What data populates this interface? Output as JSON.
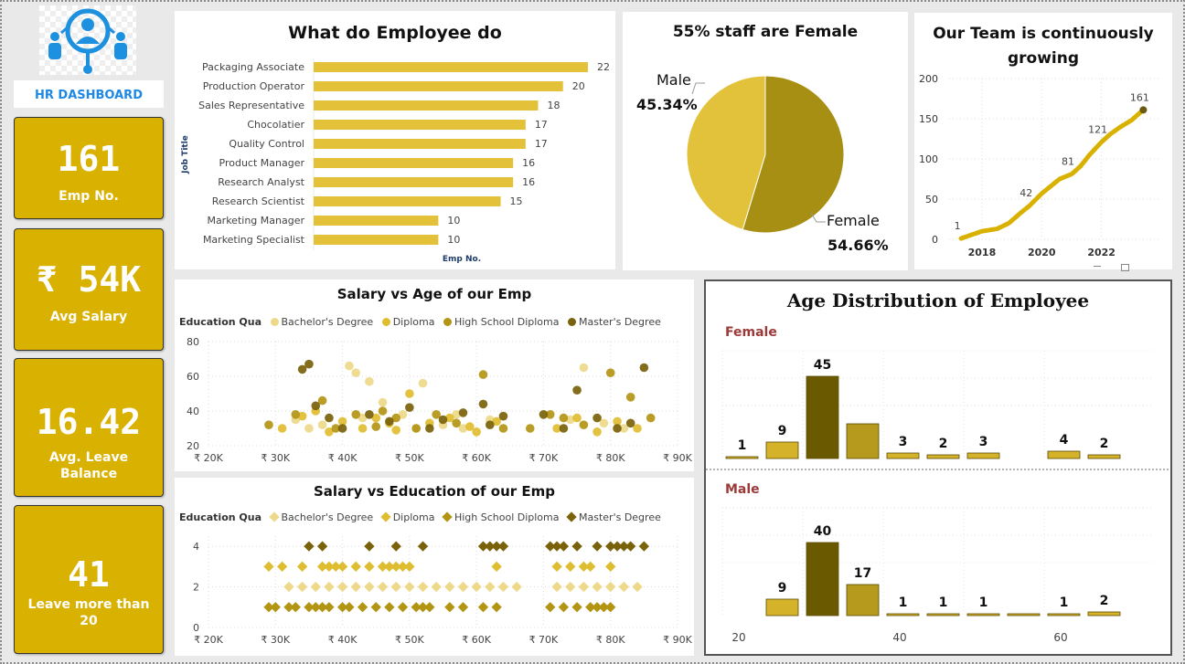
{
  "logo": {
    "title": "HR DASHBOARD",
    "icon": "people-network-icon"
  },
  "kpis": [
    {
      "value": "161",
      "label": "Emp No."
    },
    {
      "value": "₹ 54K",
      "label": "Avg Salary"
    },
    {
      "value": "16.42",
      "label": "Avg. Leave Balance"
    },
    {
      "value": "41",
      "label": "Leave more than 20"
    }
  ],
  "colors": {
    "gold": "#d9b100",
    "bar": "#e3c23a",
    "bachelor": "#eed98a",
    "diploma": "#dfbd30",
    "highschool": "#b39514",
    "masters": "#7a620a",
    "female_title": "#9c3a3a"
  },
  "job_chart": {
    "title": "What do Employee do",
    "ylabel": "Job Title",
    "xlabel": "Emp No.",
    "chart_data": {
      "type": "bar",
      "categories": [
        "Packaging Associate",
        "Production Operator",
        "Sales Representative",
        "Chocolatier",
        "Quality Control",
        "Product Manager",
        "Research Analyst",
        "Research Scientist",
        "Marketing Manager",
        "Marketing Specialist"
      ],
      "values": [
        22,
        20,
        18,
        17,
        17,
        16,
        16,
        15,
        10,
        10
      ]
    }
  },
  "gender_chart": {
    "title": "55% staff are Female",
    "chart_data": {
      "type": "pie",
      "slices": [
        {
          "name": "Female",
          "value": 54.66,
          "label": "54.66%"
        },
        {
          "name": "Male",
          "value": 45.34,
          "label": "45.34%"
        }
      ]
    }
  },
  "growth_chart": {
    "title": "Our Team is continuously growing",
    "chart_data": {
      "type": "line",
      "x": [
        2017.3,
        2017.6,
        2018.0,
        2018.5,
        2018.9,
        2019.3,
        2019.6,
        2020.0,
        2020.3,
        2020.6,
        2021.0,
        2021.3,
        2021.6,
        2022.0,
        2022.3,
        2022.6,
        2023.0,
        2023.4
      ],
      "y": [
        1,
        5,
        10,
        13,
        20,
        33,
        42,
        57,
        66,
        75,
        81,
        91,
        105,
        121,
        131,
        139,
        148,
        161
      ],
      "labels": [
        {
          "x": 2017.3,
          "y": 1,
          "text": "1"
        },
        {
          "x": 2019.6,
          "y": 42,
          "text": "42"
        },
        {
          "x": 2021.0,
          "y": 81,
          "text": "81"
        },
        {
          "x": 2022.0,
          "y": 121,
          "text": "121"
        },
        {
          "x": 2023.4,
          "y": 161,
          "text": "161"
        }
      ],
      "yticks": [
        0,
        50,
        100,
        150,
        200
      ],
      "xticks": [
        2018,
        2020,
        2022
      ],
      "xlim": [
        2016.9,
        2024.0
      ],
      "ylim": [
        0,
        200
      ]
    }
  },
  "scatter_age": {
    "title": "Salary vs Age of our Emp",
    "legend_title": "Education Qua",
    "series_names": [
      "Bachelor's Degree",
      "Diploma",
      "High School Diploma",
      "Master's Degree"
    ],
    "yticks": [
      20,
      40,
      60,
      80
    ],
    "xticks": [
      "₹ 20K",
      "₹ 30K",
      "₹ 40K",
      "₹ 50K",
      "₹ 60K",
      "₹ 70K",
      "₹ 80K",
      "₹ 90K"
    ],
    "chart_data": {
      "type": "scatter",
      "xlim": [
        20,
        90
      ],
      "ylim": [
        20,
        80
      ],
      "series": [
        {
          "name": "Bachelor's Degree",
          "points": [
            [
              33,
              35
            ],
            [
              35,
              30
            ],
            [
              41,
              66
            ],
            [
              42,
              62
            ],
            [
              44,
              57
            ],
            [
              46,
              45
            ],
            [
              49,
              38
            ],
            [
              52,
              56
            ],
            [
              55,
              32
            ],
            [
              58,
              30
            ],
            [
              62,
              35
            ],
            [
              76,
              65
            ],
            [
              79,
              33
            ],
            [
              82,
              30
            ],
            [
              37,
              32
            ],
            [
              43,
              36
            ],
            [
              51,
              30
            ],
            [
              57,
              38
            ],
            [
              74,
              35
            ]
          ]
        },
        {
          "name": "Diploma",
          "points": [
            [
              31,
              30
            ],
            [
              34,
              37
            ],
            [
              38,
              28
            ],
            [
              40,
              34
            ],
            [
              43,
              30
            ],
            [
              45,
              36
            ],
            [
              48,
              29
            ],
            [
              50,
              50
            ],
            [
              53,
              33
            ],
            [
              56,
              36
            ],
            [
              60,
              28
            ],
            [
              63,
              34
            ],
            [
              72,
              30
            ],
            [
              75,
              36
            ],
            [
              78,
              28
            ],
            [
              81,
              34
            ],
            [
              84,
              30
            ],
            [
              36,
              40
            ],
            [
              47,
              33
            ],
            [
              59,
              31
            ]
          ]
        },
        {
          "name": "High School Diploma",
          "points": [
            [
              29,
              32
            ],
            [
              33,
              38
            ],
            [
              37,
              46
            ],
            [
              39,
              30
            ],
            [
              42,
              38
            ],
            [
              45,
              31
            ],
            [
              48,
              36
            ],
            [
              51,
              30
            ],
            [
              54,
              38
            ],
            [
              57,
              33
            ],
            [
              61,
              61
            ],
            [
              64,
              30
            ],
            [
              73,
              36
            ],
            [
              76,
              32
            ],
            [
              80,
              62
            ],
            [
              83,
              48
            ],
            [
              86,
              36
            ],
            [
              71,
              38
            ],
            [
              68,
              30
            ],
            [
              46,
              40
            ]
          ]
        },
        {
          "name": "Master's Degree",
          "points": [
            [
              34,
              64
            ],
            [
              35,
              67
            ],
            [
              36,
              43
            ],
            [
              38,
              36
            ],
            [
              40,
              30
            ],
            [
              44,
              38
            ],
            [
              47,
              34
            ],
            [
              50,
              42
            ],
            [
              53,
              30
            ],
            [
              55,
              35
            ],
            [
              58,
              39
            ],
            [
              61,
              44
            ],
            [
              62,
              32
            ],
            [
              70,
              38
            ],
            [
              73,
              30
            ],
            [
              75,
              52
            ],
            [
              78,
              36
            ],
            [
              81,
              30
            ],
            [
              83,
              33
            ],
            [
              85,
              65
            ],
            [
              64,
              37
            ]
          ]
        }
      ]
    }
  },
  "scatter_edu": {
    "title": "Salary vs Education of our Emp",
    "legend_title": "Education Qua",
    "series_names": [
      "Bachelor's Degree",
      "Diploma",
      "High School Diploma",
      "Master's Degree"
    ],
    "yticks": [
      0,
      2,
      4
    ],
    "xticks": [
      "₹ 20K",
      "₹ 30K",
      "₹ 40K",
      "₹ 50K",
      "₹ 60K",
      "₹ 70K",
      "₹ 80K",
      "₹ 90K"
    ],
    "chart_data": {
      "type": "scatter",
      "xlim": [
        20,
        90
      ],
      "ylim": [
        0,
        4.5
      ],
      "series": [
        {
          "name": "Bachelor's Degree",
          "xs": [
            32,
            34,
            36,
            38,
            40,
            42,
            44,
            46,
            48,
            50,
            52,
            54,
            56,
            58,
            60,
            62,
            64,
            66,
            72,
            74,
            76,
            78,
            80,
            82,
            84
          ],
          "y": 2
        },
        {
          "name": "Diploma",
          "xs": [
            29,
            31,
            34,
            37,
            38,
            39,
            40,
            42,
            44,
            46,
            47,
            48,
            49,
            50,
            63,
            72,
            74,
            76,
            77,
            80
          ],
          "y": 3
        },
        {
          "name": "High School Diploma",
          "xs": [
            29,
            30,
            32,
            33,
            35,
            36,
            37,
            38,
            40,
            41,
            43,
            45,
            47,
            49,
            51,
            52,
            53,
            56,
            58,
            61,
            63,
            71,
            73,
            75,
            77,
            78,
            79,
            80
          ],
          "y": 1
        },
        {
          "name": "Master's Degree",
          "xs": [
            35,
            37,
            44,
            48,
            52,
            61,
            62,
            63,
            64,
            71,
            72,
            73,
            75,
            78,
            80,
            81,
            82,
            83,
            85
          ],
          "y": 4
        }
      ]
    }
  },
  "age_dist": {
    "title": "Age Distribution of Employee",
    "female_label": "Female",
    "male_label": "Male",
    "xticks": [
      20,
      40,
      60
    ],
    "chart_data": {
      "type": "bar",
      "bins": [
        20,
        25,
        30,
        35,
        40,
        45,
        50,
        55,
        60,
        65
      ],
      "series": [
        {
          "name": "Female",
          "values": [
            1,
            9,
            45,
            19,
            3,
            2,
            3,
            0,
            4,
            2
          ],
          "labels": [
            "1",
            "9",
            "45",
            "",
            "3",
            "2",
            "3",
            "",
            "4",
            "2"
          ]
        },
        {
          "name": "Male",
          "values": [
            0,
            9,
            40,
            17,
            1,
            1,
            1,
            0.3,
            1,
            2
          ],
          "labels": [
            "",
            "9",
            "40",
            "17",
            "1",
            "1",
            "1",
            "",
            "1",
            "2"
          ]
        }
      ]
    }
  }
}
